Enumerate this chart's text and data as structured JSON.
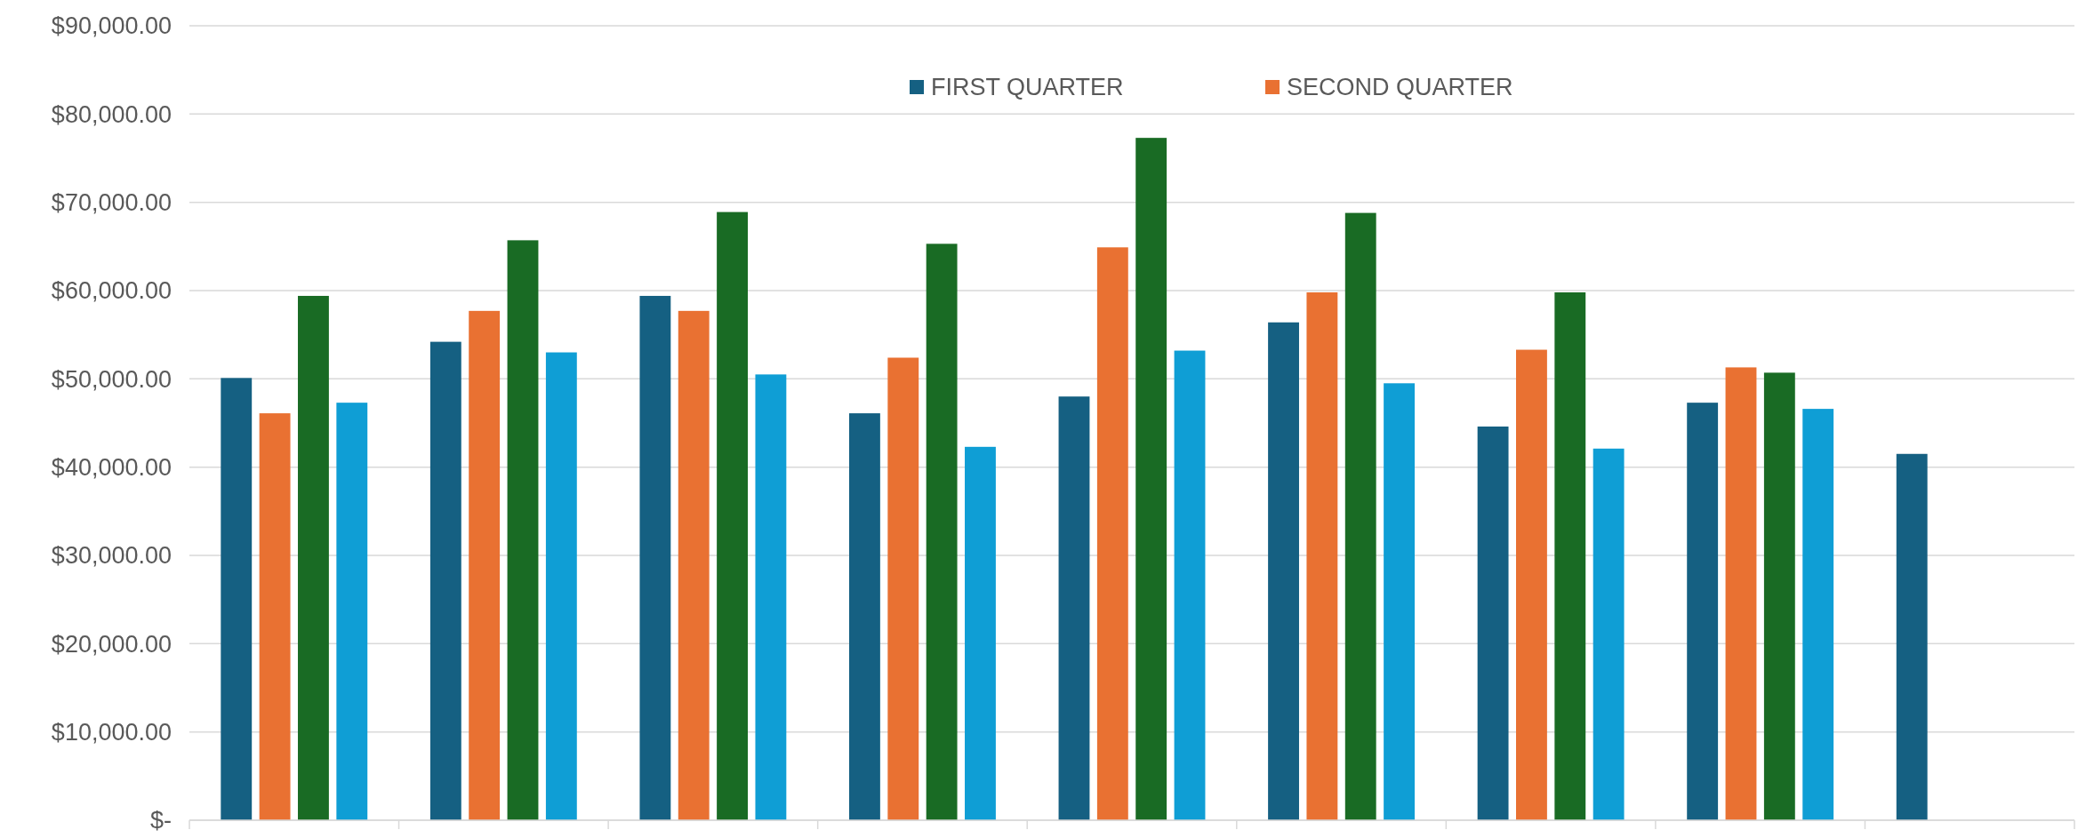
{
  "chart_data": {
    "type": "bar",
    "categories": [
      null,
      null,
      null,
      null,
      null,
      null,
      null,
      null,
      null
    ],
    "series": [
      {
        "name": "FIRST QUARTER",
        "color": "#156082",
        "values": [
          50100,
          54200,
          59400,
          46100,
          48000,
          56400,
          44600,
          47300,
          41500
        ]
      },
      {
        "name": "SECOND QUARTER",
        "color": "#e97132",
        "values": [
          46100,
          57700,
          57700,
          52400,
          64900,
          59800,
          53300,
          51300,
          null
        ]
      },
      {
        "color": "#196b24",
        "values": [
          59400,
          65700,
          68900,
          65300,
          77300,
          68800,
          59800,
          50700,
          null
        ]
      },
      {
        "color": "#0f9ed5",
        "values": [
          47300,
          53000,
          50500,
          42300,
          53200,
          49500,
          42100,
          46600,
          null
        ]
      }
    ],
    "ylim": [
      0,
      90000
    ],
    "yticks": [
      {
        "value": 0,
        "label": "$-"
      },
      {
        "value": 10000,
        "label": "$10,000.00"
      },
      {
        "value": 20000,
        "label": "$20,000.00"
      },
      {
        "value": 30000,
        "label": "$30,000.00"
      },
      {
        "value": 40000,
        "label": "$40,000.00"
      },
      {
        "value": 50000,
        "label": "$50,000.00"
      },
      {
        "value": 60000,
        "label": "$60,000.00"
      },
      {
        "value": 70000,
        "label": "$70,000.00"
      },
      {
        "value": 80000,
        "label": "$80,000.00"
      },
      {
        "value": 90000,
        "label": "$90,000.00"
      }
    ],
    "grid": "y",
    "legend": "top"
  }
}
